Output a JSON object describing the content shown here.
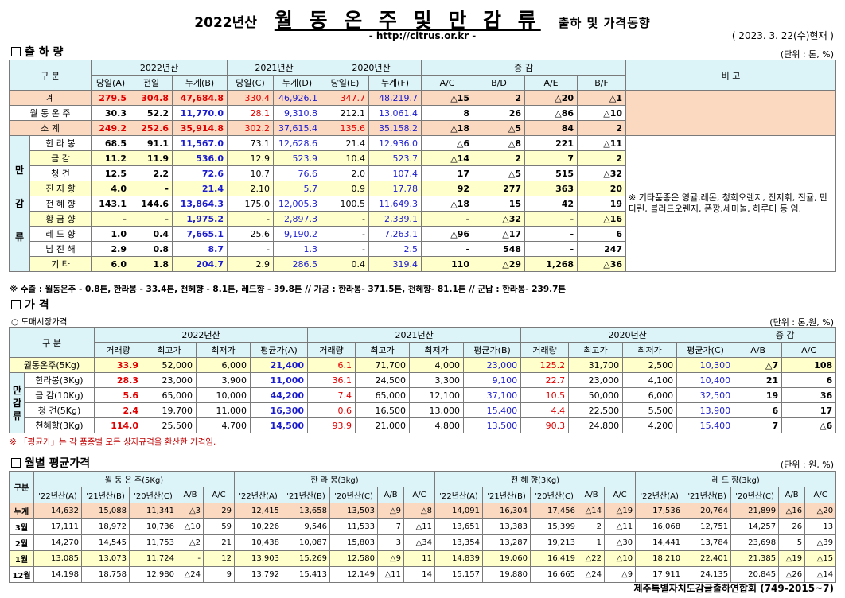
{
  "title": {
    "year": "2022년산",
    "main": "월 동 온 주 및 만 감 류",
    "suffix": "출하 및 가격동향"
  },
  "source_url": "- http://citrus.or.kr -",
  "report_date": "( 2023. 3. 22(수)현재 )",
  "shipment": {
    "section_title": "출 하 량",
    "unit": "(단위 : 톤, %)",
    "header": {
      "gubun": "구 분",
      "y2022": "2022년산",
      "y2021": "2021년산",
      "y2020": "2020년산",
      "change": "증 감",
      "remark": "비 고",
      "cols": [
        "당일(A)",
        "전일",
        "누계(B)",
        "당일(C)",
        "누계(D)",
        "당일(E)",
        "누계(F)",
        "A/C",
        "B/D",
        "A/E",
        "B/F"
      ]
    },
    "group_label": [
      "만",
      "감",
      "류"
    ],
    "rows": [
      {
        "name": "계",
        "v": [
          "279.5",
          "304.8",
          "47,684.8",
          "330.4",
          "46,926.1",
          "347.7",
          "48,219.7",
          "△15",
          "2",
          "△20",
          "△1"
        ]
      },
      {
        "name": "월 동 온 주",
        "v": [
          "30.3",
          "52.2",
          "11,770.0",
          "28.1",
          "9,310.8",
          "212.1",
          "13,061.4",
          "8",
          "26",
          "△86",
          "△10"
        ]
      },
      {
        "name": "소 계",
        "v": [
          "249.2",
          "252.6",
          "35,914.8",
          "302.2",
          "37,615.4",
          "135.6",
          "35,158.2",
          "△18",
          "△5",
          "84",
          "2"
        ]
      },
      {
        "name": "한 라 봉",
        "v": [
          "68.5",
          "91.1",
          "11,567.0",
          "73.1",
          "12,628.6",
          "21.4",
          "12,936.0",
          "△6",
          "△8",
          "221",
          "△11"
        ]
      },
      {
        "name": "금 감",
        "v": [
          "11.2",
          "11.9",
          "536.0",
          "12.9",
          "523.9",
          "10.4",
          "523.7",
          "△14",
          "2",
          "7",
          "2"
        ]
      },
      {
        "name": "청 견",
        "v": [
          "12.5",
          "2.2",
          "72.6",
          "10.7",
          "76.6",
          "2.0",
          "107.4",
          "17",
          "△5",
          "515",
          "△32"
        ]
      },
      {
        "name": "진 지 향",
        "v": [
          "4.0",
          "-",
          "21.4",
          "2.10",
          "5.7",
          "0.9",
          "17.78",
          "92",
          "277",
          "363",
          "20"
        ]
      },
      {
        "name": "천 혜 향",
        "v": [
          "143.1",
          "144.6",
          "13,864.3",
          "175.0",
          "12,005.3",
          "100.5",
          "11,649.3",
          "△18",
          "15",
          "42",
          "19"
        ]
      },
      {
        "name": "황 금 향",
        "v": [
          "-",
          "-",
          "1,975.2",
          "-",
          "2,897.3",
          "-",
          "2,339.1",
          "-",
          "△32",
          "-",
          "△16"
        ]
      },
      {
        "name": "레 드 향",
        "v": [
          "1.0",
          "0.4",
          "7,665.1",
          "25.6",
          "9,190.2",
          "-",
          "7,263.1",
          "△96",
          "△17",
          "-",
          "6"
        ]
      },
      {
        "name": "남 진 해",
        "v": [
          "2.9",
          "0.8",
          "8.7",
          "-",
          "1.3",
          "-",
          "2.5",
          "-",
          "548",
          "-",
          "247"
        ]
      },
      {
        "name": "기 타",
        "v": [
          "6.0",
          "1.8",
          "204.7",
          "2.9",
          "286.5",
          "0.4",
          "319.4",
          "110",
          "△29",
          "1,268",
          "△36"
        ]
      }
    ],
    "remark": "※ 기타품종은 영귤,레몬, 청희오렌지, 진지휘, 진귤, 만다린, 블러드오렌지, 폰깡,세미놀, 하루미 등 임.",
    "footnote": "※ 수출 : 월동온주 - 0.8톤, 한라봉 - 33.4톤, 천혜향 - 8.1톤, 레드향 - 39.8톤 // 가공 : 한라봉- 371.5톤, 천혜향- 81.1톤 // 군납 : 한라봉- 239.7톤"
  },
  "price": {
    "section_title": "가 격",
    "unit": "(단위 : 톤,원, %)",
    "subsection": "○ 도매시장가격",
    "header": {
      "gubun": "구 분",
      "y2022": "2022년산",
      "y2021": "2021년산",
      "y2020": "2020년산",
      "change": "증 감",
      "cols": [
        "거래량",
        "최고가",
        "최저가",
        "평균가(A)",
        "거래량",
        "최고가",
        "최저가",
        "평균가(B)",
        "거래량",
        "최고가",
        "최저가",
        "평균가(C)",
        "A/B",
        "A/C"
      ]
    },
    "group_label": [
      "만",
      "감",
      "류"
    ],
    "rows": [
      {
        "name": "월동온주(5Kg)",
        "v": [
          "33.9",
          "52,000",
          "6,000",
          "21,400",
          "6.1",
          "71,700",
          "4,000",
          "23,000",
          "125.2",
          "31,700",
          "2,500",
          "10,300",
          "△7",
          "108"
        ]
      },
      {
        "name": "한라봉(3Kg)",
        "v": [
          "28.3",
          "23,000",
          "3,900",
          "11,000",
          "36.1",
          "24,500",
          "3,300",
          "9,100",
          "22.7",
          "23,000",
          "4,100",
          "10,400",
          "21",
          "6"
        ]
      },
      {
        "name": "금 감(10Kg)",
        "v": [
          "5.6",
          "65,000",
          "10,000",
          "44,200",
          "7.4",
          "65,000",
          "12,100",
          "37,100",
          "10.5",
          "50,000",
          "6,000",
          "32,500",
          "19",
          "36"
        ]
      },
      {
        "name": "청 견(5Kg)",
        "v": [
          "2.4",
          "19,700",
          "11,000",
          "16,300",
          "0.6",
          "16,500",
          "13,000",
          "15,400",
          "4.4",
          "22,500",
          "5,500",
          "13,900",
          "6",
          "17"
        ]
      },
      {
        "name": "천혜향(3Kg)",
        "v": [
          "114.0",
          "25,500",
          "4,700",
          "14,500",
          "93.9",
          "21,000",
          "4,800",
          "13,500",
          "90.3",
          "24,800",
          "4,200",
          "15,400",
          "7",
          "△6"
        ]
      }
    ],
    "footnote": "※ 「평균가」는 각 품종별 모든 상자규격을 환산한 가격임."
  },
  "monthly": {
    "section_title": "월별 평균가격",
    "unit": "(단위 : 원, %)",
    "header": {
      "gubun": "구분",
      "groups": [
        "월 동 온 주(5Kg)",
        "한 라 봉(3kg)",
        "천 혜 향(3Kg)",
        "레 드 향(3kg)"
      ],
      "cols": [
        "'22년산(A)",
        "'21년산(B)",
        "'20년산(C)",
        "A/B",
        "A/C"
      ]
    },
    "rows": [
      {
        "name": "누계",
        "v": [
          "14,632",
          "15,088",
          "11,341",
          "△3",
          "29",
          "12,415",
          "13,658",
          "13,503",
          "△9",
          "△8",
          "14,091",
          "16,304",
          "17,456",
          "△14",
          "△19",
          "17,536",
          "20,764",
          "21,899",
          "△16",
          "△20"
        ]
      },
      {
        "name": "3월",
        "v": [
          "17,111",
          "18,972",
          "10,736",
          "△10",
          "59",
          "10,226",
          "9,546",
          "11,533",
          "7",
          "△11",
          "13,651",
          "13,383",
          "15,399",
          "2",
          "△11",
          "16,068",
          "12,751",
          "14,257",
          "26",
          "13"
        ]
      },
      {
        "name": "2월",
        "v": [
          "14,270",
          "14,545",
          "11,753",
          "△2",
          "21",
          "10,438",
          "10,087",
          "15,803",
          "3",
          "△34",
          "13,354",
          "13,287",
          "19,213",
          "1",
          "△30",
          "14,441",
          "13,784",
          "23,698",
          "5",
          "△39"
        ]
      },
      {
        "name": "1월",
        "v": [
          "13,085",
          "13,073",
          "11,724",
          "-",
          "12",
          "13,903",
          "15,269",
          "12,580",
          "△9",
          "11",
          "14,839",
          "19,060",
          "16,419",
          "△22",
          "△10",
          "18,210",
          "22,401",
          "21,385",
          "△19",
          "△15"
        ]
      },
      {
        "name": "12월",
        "v": [
          "14,198",
          "18,758",
          "12,980",
          "△24",
          "9",
          "13,792",
          "15,413",
          "12,149",
          "△11",
          "14",
          "15,157",
          "19,880",
          "16,665",
          "△24",
          "△9",
          "17,911",
          "24,135",
          "20,845",
          "△26",
          "△14"
        ]
      }
    ]
  },
  "footer": "제주특별자치도감귤출하연합회 (749-2015~7)"
}
